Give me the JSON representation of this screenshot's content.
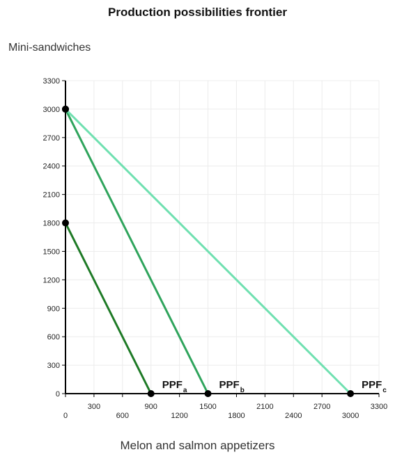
{
  "chart_data": {
    "type": "line",
    "title": "Production possibilities frontier",
    "xlabel": "Melon and salmon appetizers",
    "ylabel": "Mini-sandwiches",
    "xlim": [
      0,
      3300
    ],
    "ylim": [
      0,
      3300
    ],
    "xticks": [
      0,
      300,
      600,
      900,
      1200,
      1500,
      1800,
      2100,
      2400,
      2700,
      3000,
      3300
    ],
    "yticks": [
      0,
      300,
      600,
      900,
      1200,
      1500,
      1800,
      2100,
      2400,
      2700,
      3000,
      3300
    ],
    "grid": true,
    "series": [
      {
        "name": "PPF",
        "sub": "a",
        "color": "#1e7a26",
        "points": [
          [
            0,
            1800
          ],
          [
            900,
            0
          ]
        ]
      },
      {
        "name": "PPF",
        "sub": "b",
        "color": "#2fa45c",
        "points": [
          [
            0,
            3000
          ],
          [
            1500,
            0
          ]
        ]
      },
      {
        "name": "PPF",
        "sub": "c",
        "color": "#6fe0b0",
        "points": [
          [
            0,
            3000
          ],
          [
            3000,
            0
          ]
        ]
      }
    ]
  }
}
